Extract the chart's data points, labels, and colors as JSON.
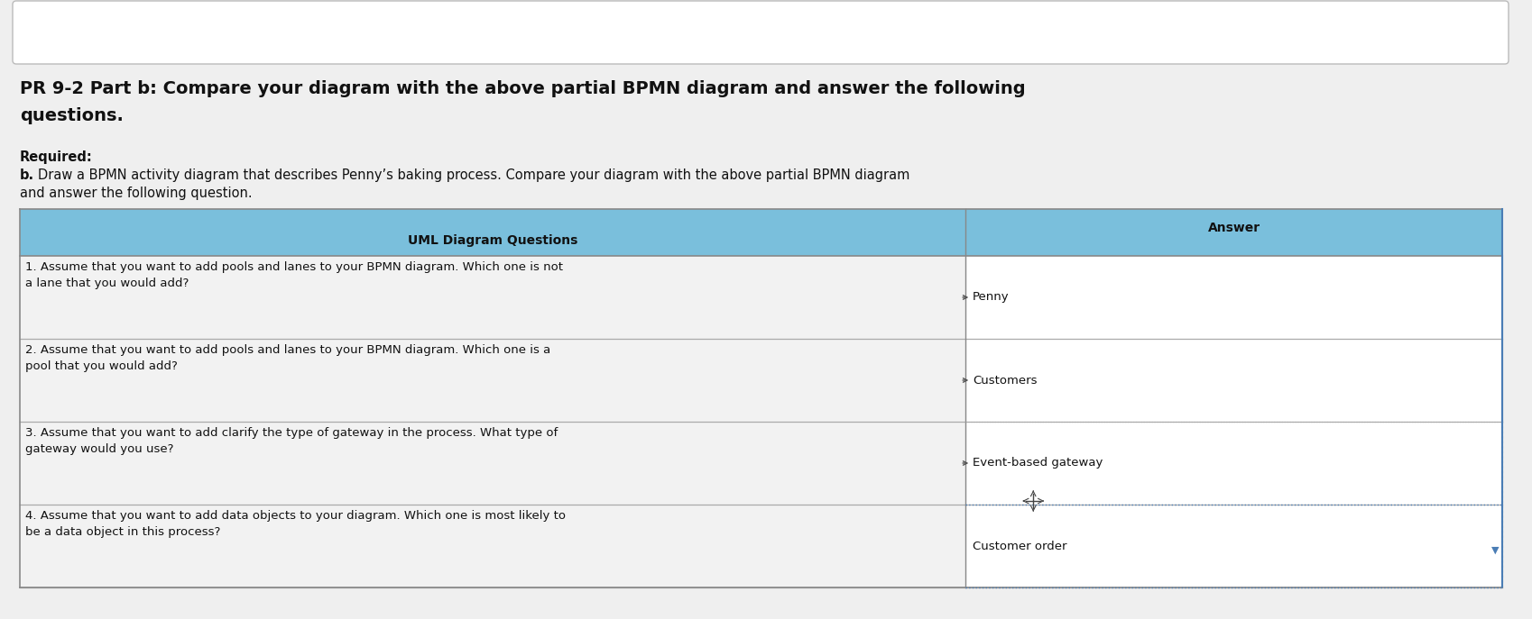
{
  "background_color": "#e8e8e8",
  "page_color": "#efefef",
  "title_line1": "PR 9-2 Part b: Compare your diagram with the above partial BPMN diagram and answer the following",
  "title_line2": "questions.",
  "required_label": "Required:",
  "required_b": "b.",
  "required_text_line1": "Draw a BPMN activity diagram that describes Penny’s baking process. Compare your diagram with the above partial BPMN diagram",
  "required_text_line2": "and answer the following question.",
  "table_header_bg": "#7abfdc",
  "table_header_darker": "#5a9fc0",
  "col1_header": "UML Diagram Questions",
  "col2_header": "Answer",
  "rows": [
    {
      "question_line1": "1. Assume that you want to add pools and lanes to your BPMN diagram. Which one is not",
      "question_line2": "a lane that you would add?",
      "answer": "Penny"
    },
    {
      "question_line1": "2. Assume that you want to add pools and lanes to your BPMN diagram. Which one is a",
      "question_line2": "pool that you would add?",
      "answer": "Customers"
    },
    {
      "question_line1": "3. Assume that you want to add clarify the type of gateway in the process. What type of",
      "question_line2": "gateway would you use?",
      "answer": "Event-based gateway"
    },
    {
      "question_line1": "4. Assume that you want to add data objects to your diagram. Which one is most likely to",
      "question_line2": "be a data object in this process?",
      "answer": "Customer order"
    }
  ],
  "row_bg": "#f5f5f5",
  "border_color": "#aaaaaa",
  "blue_border": "#4a7db5",
  "title_fontsize": 14,
  "body_fontsize": 10.5,
  "table_q_fontsize": 9.5,
  "table_a_fontsize": 9.5
}
